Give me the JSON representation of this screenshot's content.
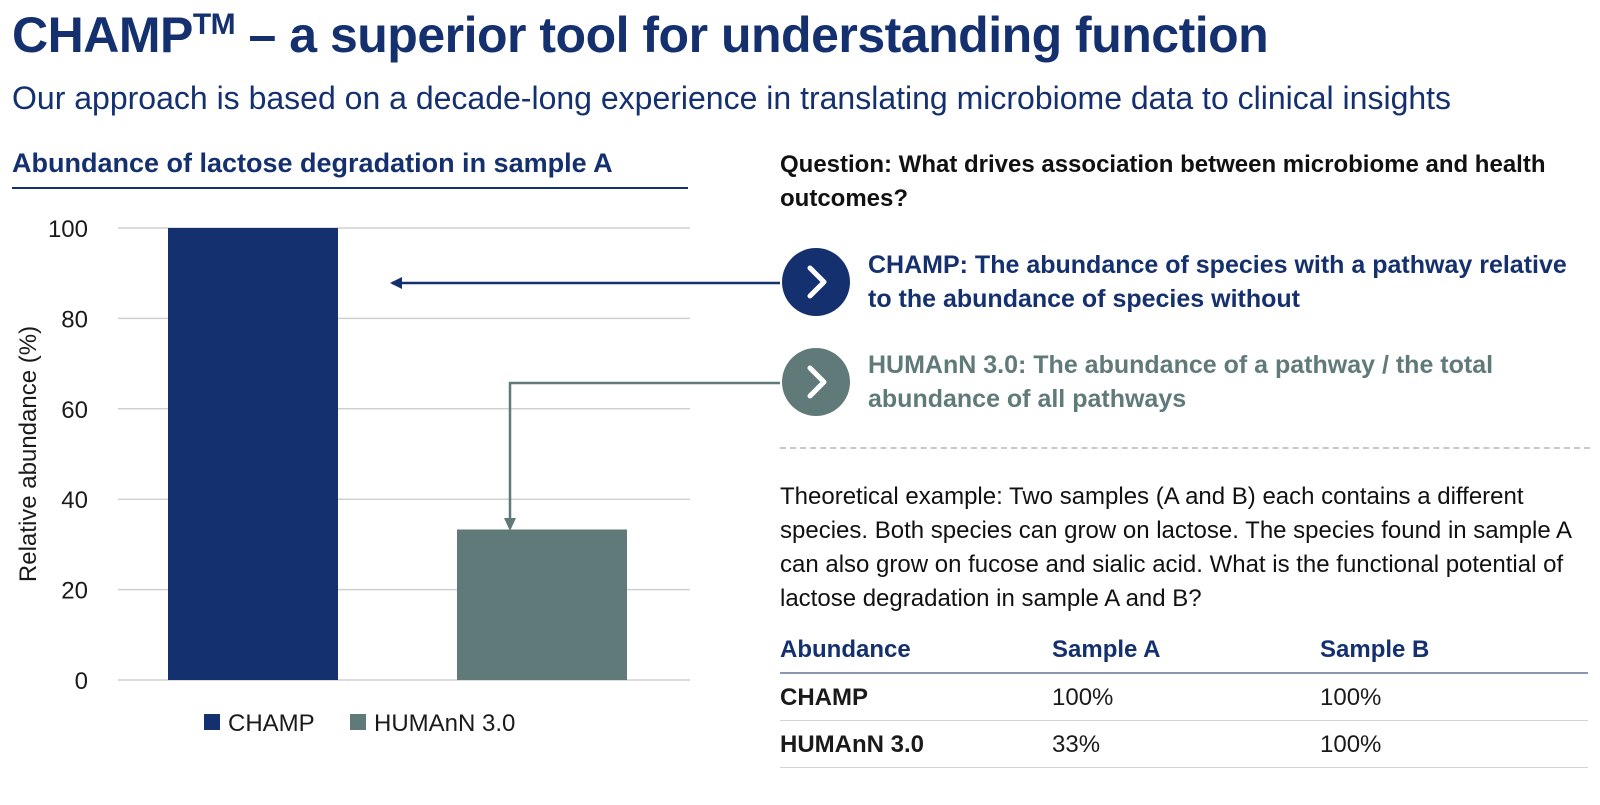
{
  "title_main": "CHAMP",
  "title_sup": "TM",
  "title_rest": " – a superior tool for understanding function",
  "subtitle": "Our approach is based on a decade-long experience in translating microbiome data to clinical insights",
  "question": "Question: What drives association between microbiome and health outcomes?",
  "statements": [
    {
      "text": "CHAMP: The abundance of species with a pathway relative to the abundance of species without",
      "color": "#14306f",
      "icon": "chevron-right-icon"
    },
    {
      "text": "HUMAnN 3.0: The abundance of a pathway / the total abundance of all pathways",
      "color": "#5f7a79",
      "icon": "chevron-right-icon"
    }
  ],
  "example_text": "Theoretical example: Two samples (A and B) each contains a different species. Both species can grow on lactose. The species found in sample A can also grow on fucose and sialic acid. What is the functional potential of lactose degradation in sample A and B?",
  "table": {
    "headers": [
      "Abundance",
      "Sample A",
      "Sample B"
    ],
    "rows": [
      [
        "CHAMP",
        "100%",
        "100%"
      ],
      [
        "HUMAnN 3.0",
        "33%",
        "100%"
      ]
    ]
  },
  "chart_data": {
    "type": "bar",
    "title": "Abundance of lactose degradation in sample A",
    "categories": [
      "CHAMP",
      "HUMAnN 3.0"
    ],
    "values": [
      100,
      33.3
    ],
    "colors": [
      "#14306f",
      "#5f7a79"
    ],
    "xlabel": "",
    "ylabel": "Relative abundance (%)",
    "ylim": [
      0,
      100
    ],
    "yticks": [
      0,
      20,
      40,
      60,
      80,
      100
    ],
    "grid": true,
    "legend": "bottom",
    "legend_entries": [
      "CHAMP",
      "HUMAnN 3.0"
    ]
  }
}
